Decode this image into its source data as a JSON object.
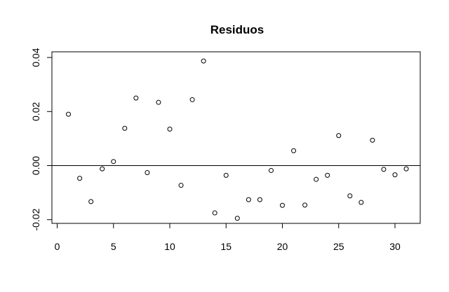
{
  "chart_data": {
    "type": "scatter",
    "title": "Residuos",
    "xlabel": "",
    "ylabel": "",
    "xlim": [
      0,
      32
    ],
    "ylim": [
      -0.021,
      0.041
    ],
    "x_ticks": [
      0,
      5,
      10,
      15,
      20,
      25,
      30
    ],
    "x_tick_labels": [
      "0",
      "5",
      "10",
      "15",
      "20",
      "25",
      "30"
    ],
    "y_ticks": [
      -0.02,
      0.0,
      0.02,
      0.04
    ],
    "y_tick_labels": [
      "-0.02",
      "0.00",
      "0.02",
      "0.04"
    ],
    "reference_line_y": 0,
    "grid": false,
    "marker": "open-circle",
    "series": [
      {
        "x": [
          1,
          2,
          3,
          4,
          5,
          6,
          7,
          8,
          9,
          10,
          11,
          12,
          13,
          14,
          15,
          16,
          17,
          18,
          19,
          20,
          21,
          22,
          23,
          24,
          25,
          26,
          27,
          28,
          29,
          30,
          31
        ],
        "y": [
          0.019,
          -0.0047,
          -0.0133,
          -0.0012,
          0.0015,
          0.0138,
          0.025,
          -0.0026,
          0.0234,
          0.0135,
          -0.0073,
          0.0244,
          0.0387,
          -0.0175,
          -0.0036,
          -0.0195,
          -0.0126,
          -0.0126,
          -0.0018,
          -0.0147,
          0.0055,
          -0.0146,
          -0.0051,
          -0.0036,
          0.0111,
          -0.0112,
          -0.0136,
          0.0094,
          -0.0014,
          -0.0034,
          -0.0012
        ]
      }
    ]
  }
}
